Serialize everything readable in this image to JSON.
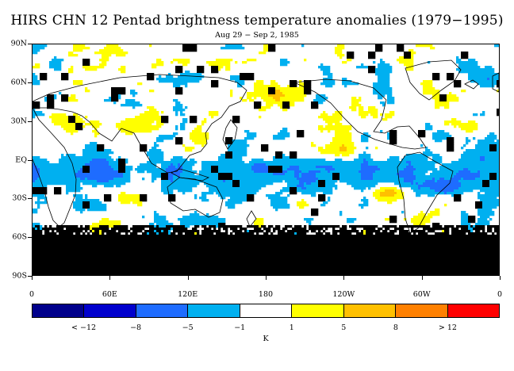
{
  "title": "HIRS CHN 12 Pentad brightness temperature anomalies (1979−1995)",
  "subtitle": "Aug 29 − Sep 2, 1985",
  "lat_labels": [
    "90N",
    "60N",
    "30N",
    "EQ",
    "30S",
    "60S",
    "90S"
  ],
  "lon_labels": [
    "0",
    "60E",
    "120E",
    "180",
    "120W",
    "60W",
    "0"
  ],
  "colorbar": {
    "colors": [
      "#00008b",
      "#0000cd",
      "#1e6cff",
      "#00b0f0",
      "#ffffff",
      "#ffff00",
      "#ffc000",
      "#ff8000",
      "#ff0000"
    ],
    "labels": [
      "< −12",
      "−8",
      "−5",
      "−1",
      "1",
      "5",
      "8",
      "> 12"
    ],
    "unit": "K"
  },
  "palette": {
    "missing": "#000000",
    "strong_cold": "#1e6cff",
    "cold": "#00b0f0",
    "warm": "#ffff00",
    "strong_warm": "#ffc000",
    "coastline": "#000000"
  }
}
